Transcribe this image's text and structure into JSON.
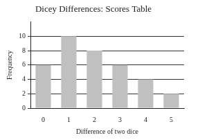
{
  "chart_data": {
    "type": "bar",
    "title": "Dicey Differences: Scores Table",
    "x_label": "Difference of two dice",
    "y_label": "Frequency",
    "categories": [
      "0",
      "1",
      "2",
      "3",
      "4",
      "5"
    ],
    "values": [
      6,
      10,
      8,
      6,
      4,
      2
    ],
    "color": "#c0c0c0",
    "ylim": [
      0,
      12
    ],
    "yticks": [
      0,
      2,
      4,
      6,
      8,
      10
    ],
    "grid": true
  }
}
